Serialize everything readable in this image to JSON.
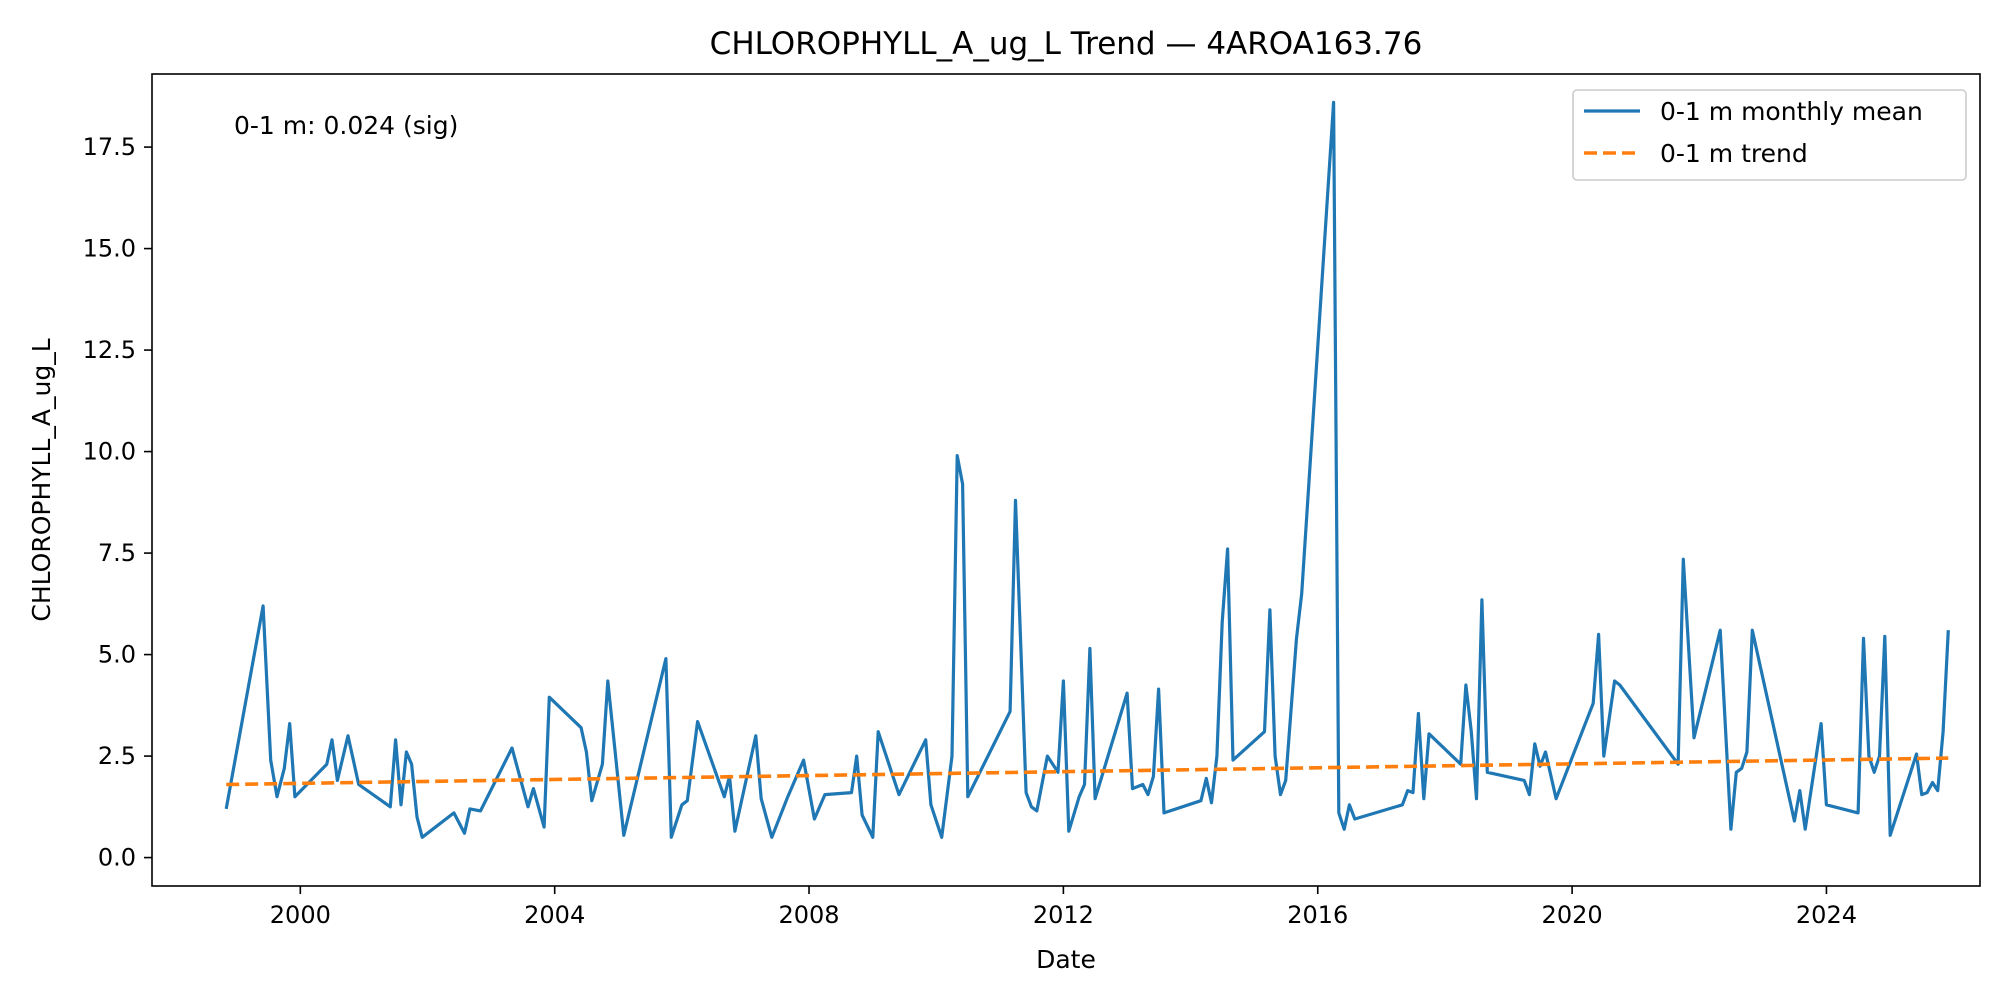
{
  "chart_data": {
    "type": "line",
    "title": "CHLOROPHYLL_A_ug_L Trend — 4AROA163.76",
    "xlabel": "Date",
    "ylabel": "CHLOROPHYLL_A_ug_L",
    "x_axis": {
      "type": "date",
      "range": [
        "1997-09-01",
        "2026-06-01"
      ],
      "ticks": [
        "2000-01-01",
        "2004-01-01",
        "2008-01-01",
        "2012-01-01",
        "2016-01-01",
        "2020-01-01",
        "2024-01-01"
      ],
      "tick_labels": [
        "2000",
        "2004",
        "2008",
        "2012",
        "2016",
        "2020",
        "2024"
      ]
    },
    "y_axis": {
      "range": [
        -0.7,
        19.3
      ],
      "ticks": [
        0.0,
        2.5,
        5.0,
        7.5,
        10.0,
        12.5,
        15.0,
        17.5
      ],
      "tick_labels": [
        "0.0",
        "2.5",
        "5.0",
        "7.5",
        "10.0",
        "12.5",
        "15.0",
        "17.5"
      ]
    },
    "grid": false,
    "legend": {
      "position": "top-right",
      "entries": [
        "0-1 m monthly mean",
        "0-1 m trend"
      ]
    },
    "annotation": "0-1 m: 0.024 (sig)",
    "series": [
      {
        "name": "0-1 m monthly mean",
        "color": "#1f77b4",
        "style": "solid",
        "points": [
          [
            "1998-11-01",
            1.2
          ],
          [
            "1999-06-01",
            6.2
          ],
          [
            "1999-07-15",
            2.4
          ],
          [
            "1999-08-20",
            1.5
          ],
          [
            "1999-10-01",
            2.2
          ],
          [
            "1999-11-01",
            3.3
          ],
          [
            "1999-12-01",
            1.5
          ],
          [
            "2000-06-01",
            2.3
          ],
          [
            "2000-07-01",
            2.9
          ],
          [
            "2000-08-01",
            1.9
          ],
          [
            "2000-10-01",
            3.0
          ],
          [
            "2000-12-01",
            1.8
          ],
          [
            "2001-06-01",
            1.25
          ],
          [
            "2001-07-01",
            2.9
          ],
          [
            "2001-08-01",
            1.3
          ],
          [
            "2001-09-01",
            2.6
          ],
          [
            "2001-10-01",
            2.3
          ],
          [
            "2001-11-01",
            1.0
          ],
          [
            "2001-12-01",
            0.5
          ],
          [
            "2002-06-01",
            1.1
          ],
          [
            "2002-08-01",
            0.6
          ],
          [
            "2002-09-01",
            1.2
          ],
          [
            "2002-11-01",
            1.15
          ],
          [
            "2003-05-01",
            2.7
          ],
          [
            "2003-08-01",
            1.25
          ],
          [
            "2003-09-01",
            1.7
          ],
          [
            "2003-11-01",
            0.75
          ],
          [
            "2003-12-01",
            3.95
          ],
          [
            "2004-06-01",
            3.2
          ],
          [
            "2004-07-01",
            2.6
          ],
          [
            "2004-08-01",
            1.4
          ],
          [
            "2004-10-01",
            2.3
          ],
          [
            "2004-11-01",
            4.35
          ],
          [
            "2005-02-01",
            0.55
          ],
          [
            "2005-10-01",
            4.9
          ],
          [
            "2005-11-01",
            0.5
          ],
          [
            "2006-01-01",
            1.3
          ],
          [
            "2006-02-01",
            1.4
          ],
          [
            "2006-04-01",
            3.35
          ],
          [
            "2006-09-01",
            1.5
          ],
          [
            "2006-10-01",
            2.0
          ],
          [
            "2006-11-01",
            0.65
          ],
          [
            "2007-03-01",
            3.0
          ],
          [
            "2007-04-01",
            1.45
          ],
          [
            "2007-06-01",
            0.5
          ],
          [
            "2007-09-01",
            1.5
          ],
          [
            "2007-12-01",
            2.4
          ],
          [
            "2008-02-01",
            0.95
          ],
          [
            "2008-04-01",
            1.55
          ],
          [
            "2008-09-01",
            1.6
          ],
          [
            "2008-10-01",
            2.5
          ],
          [
            "2008-11-01",
            1.05
          ],
          [
            "2009-01-01",
            0.5
          ],
          [
            "2009-02-01",
            3.1
          ],
          [
            "2009-06-01",
            1.55
          ],
          [
            "2009-11-01",
            2.9
          ],
          [
            "2009-12-01",
            1.3
          ],
          [
            "2010-02-01",
            0.5
          ],
          [
            "2010-04-01",
            2.5
          ],
          [
            "2010-05-01",
            9.9
          ],
          [
            "2010-06-01",
            9.2
          ],
          [
            "2010-07-01",
            1.5
          ],
          [
            "2011-03-01",
            3.6
          ],
          [
            "2011-04-01",
            8.8
          ],
          [
            "2011-06-01",
            1.6
          ],
          [
            "2011-07-01",
            1.25
          ],
          [
            "2011-08-01",
            1.15
          ],
          [
            "2011-10-01",
            2.5
          ],
          [
            "2011-12-01",
            2.1
          ],
          [
            "2012-01-01",
            4.35
          ],
          [
            "2012-02-01",
            0.65
          ],
          [
            "2012-04-01",
            1.5
          ],
          [
            "2012-05-01",
            1.8
          ],
          [
            "2012-06-01",
            5.15
          ],
          [
            "2012-07-01",
            1.45
          ],
          [
            "2013-01-01",
            4.05
          ],
          [
            "2013-02-01",
            1.7
          ],
          [
            "2013-04-01",
            1.8
          ],
          [
            "2013-05-01",
            1.55
          ],
          [
            "2013-06-01",
            2.0
          ],
          [
            "2013-07-01",
            4.15
          ],
          [
            "2013-08-01",
            1.1
          ],
          [
            "2014-03-01",
            1.4
          ],
          [
            "2014-04-01",
            1.95
          ],
          [
            "2014-05-01",
            1.35
          ],
          [
            "2014-06-01",
            2.5
          ],
          [
            "2014-07-01",
            5.8
          ],
          [
            "2014-08-01",
            7.6
          ],
          [
            "2014-09-01",
            2.4
          ],
          [
            "2015-03-01",
            3.1
          ],
          [
            "2015-04-01",
            6.1
          ],
          [
            "2015-05-01",
            2.5
          ],
          [
            "2015-06-01",
            1.55
          ],
          [
            "2015-07-01",
            1.9
          ],
          [
            "2015-09-01",
            5.4
          ],
          [
            "2015-10-01",
            6.5
          ],
          [
            "2016-04-01",
            18.6
          ],
          [
            "2016-05-01",
            1.1
          ],
          [
            "2016-06-01",
            0.7
          ],
          [
            "2016-07-01",
            1.3
          ],
          [
            "2016-08-01",
            0.95
          ],
          [
            "2017-05-01",
            1.3
          ],
          [
            "2017-06-01",
            1.65
          ],
          [
            "2017-07-01",
            1.6
          ],
          [
            "2017-08-01",
            3.55
          ],
          [
            "2017-09-01",
            1.45
          ],
          [
            "2017-10-01",
            3.05
          ],
          [
            "2018-04-01",
            2.3
          ],
          [
            "2018-05-01",
            4.25
          ],
          [
            "2018-06-01",
            3.1
          ],
          [
            "2018-07-01",
            1.45
          ],
          [
            "2018-08-01",
            6.35
          ],
          [
            "2018-09-01",
            2.1
          ],
          [
            "2019-04-01",
            1.9
          ],
          [
            "2019-05-01",
            1.55
          ],
          [
            "2019-06-01",
            2.8
          ],
          [
            "2019-07-01",
            2.25
          ],
          [
            "2019-08-01",
            2.6
          ],
          [
            "2019-10-01",
            1.45
          ],
          [
            "2020-05-01",
            3.8
          ],
          [
            "2020-06-01",
            5.5
          ],
          [
            "2020-07-01",
            2.5
          ],
          [
            "2020-09-01",
            4.35
          ],
          [
            "2020-10-01",
            4.25
          ],
          [
            "2021-09-01",
            2.3
          ],
          [
            "2021-10-01",
            7.35
          ],
          [
            "2021-12-01",
            2.95
          ],
          [
            "2022-05-01",
            5.6
          ],
          [
            "2022-07-01",
            0.7
          ],
          [
            "2022-08-01",
            2.1
          ],
          [
            "2022-09-01",
            2.2
          ],
          [
            "2022-10-01",
            2.6
          ],
          [
            "2022-11-01",
            5.6
          ],
          [
            "2023-07-01",
            0.9
          ],
          [
            "2023-08-01",
            1.65
          ],
          [
            "2023-09-01",
            0.7
          ],
          [
            "2023-12-01",
            3.3
          ],
          [
            "2024-01-01",
            1.3
          ],
          [
            "2024-07-01",
            1.1
          ],
          [
            "2024-08-01",
            5.4
          ],
          [
            "2024-09-01",
            2.5
          ],
          [
            "2024-10-01",
            2.1
          ],
          [
            "2024-11-01",
            2.5
          ],
          [
            "2024-12-01",
            5.45
          ],
          [
            "2025-01-01",
            0.55
          ],
          [
            "2025-06-01",
            2.55
          ],
          [
            "2025-07-01",
            1.55
          ],
          [
            "2025-08-01",
            1.6
          ],
          [
            "2025-09-01",
            1.85
          ],
          [
            "2025-10-01",
            1.65
          ],
          [
            "2025-11-01",
            3.1
          ],
          [
            "2025-12-01",
            5.6
          ]
        ]
      },
      {
        "name": "0-1 m trend",
        "color": "#ff7f0e",
        "style": "dashed",
        "points": [
          [
            "1998-11-01",
            1.8
          ],
          [
            "2025-12-01",
            2.45
          ]
        ]
      }
    ]
  }
}
